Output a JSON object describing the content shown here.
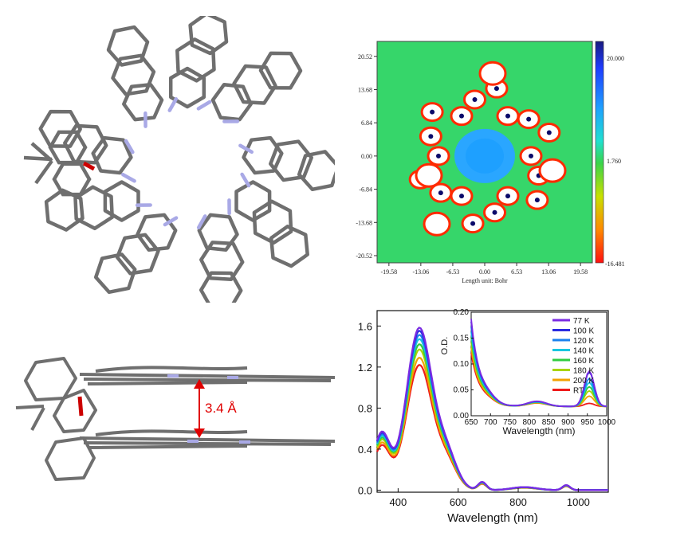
{
  "molecule_side": {
    "distance_label": "3.4 Å"
  },
  "colors": {
    "bond": "#6f6f6f",
    "nitrogen": "#a9a9e6",
    "oxygen": "#cc0000",
    "distance": "#e00000"
  },
  "chart_data": [
    {
      "type": "heatmap",
      "title": "",
      "xlabel": "Length unit: Bohr",
      "ylabel": "",
      "x_ticks": [
        "-19.58",
        "-13.06",
        "-6.53",
        "0.00",
        "6.53",
        "13.06",
        "19.58"
      ],
      "y_ticks": [
        "20.52",
        "13.68",
        "6.84",
        "0.00",
        "-6.84",
        "-13.68",
        "-20.52"
      ],
      "colorbar": {
        "max": "20.000",
        "mid": "1.760",
        "min": "-16.481"
      },
      "xlim": [
        -22.0,
        22.0
      ],
      "ylim": [
        -22.0,
        23.6
      ]
    },
    {
      "type": "line",
      "xlabel": "Wavelength (nm)",
      "ylabel": "",
      "xlim": [
        330,
        1100
      ],
      "ylim": [
        -0.02,
        1.75
      ],
      "x_ticks": [
        400,
        600,
        800,
        1000
      ],
      "y_ticks": [
        "0.0",
        "0.4",
        "0.8",
        "1.2",
        "1.6"
      ],
      "series": [
        {
          "name": "77 K",
          "color": "#7a2be2",
          "peak": 1.57
        },
        {
          "name": "100 K",
          "color": "#2a2ae0",
          "peak": 1.54
        },
        {
          "name": "120 K",
          "color": "#1a80ee",
          "peak": 1.5
        },
        {
          "name": "140 K",
          "color": "#18c6e0",
          "peak": 1.46
        },
        {
          "name": "160 K",
          "color": "#30cc40",
          "peak": 1.41
        },
        {
          "name": "180 K",
          "color": "#a8d400",
          "peak": 1.36
        },
        {
          "name": "200 K",
          "color": "#f2a200",
          "peak": 1.28
        },
        {
          "name": "RT",
          "color": "#ee1b1b",
          "peak": 1.21
        }
      ],
      "inset": {
        "xlabel": "Wavelength (nm)",
        "ylabel": "O.D.",
        "xlim": [
          650,
          1000
        ],
        "ylim": [
          0.0,
          0.2
        ],
        "x_ticks": [
          650,
          700,
          750,
          800,
          850,
          900,
          950,
          1000
        ],
        "y_ticks": [
          "0.00",
          "0.05",
          "0.10",
          "0.15",
          "0.20"
        ],
        "legend_position": "top-right",
        "series_peak_950": [
          0.08,
          0.078,
          0.066,
          0.058,
          0.05,
          0.042,
          0.032,
          0.018
        ],
        "series_start_650": [
          0.185,
          0.18,
          0.17,
          0.16,
          0.15,
          0.14,
          0.13,
          0.12
        ]
      }
    }
  ]
}
